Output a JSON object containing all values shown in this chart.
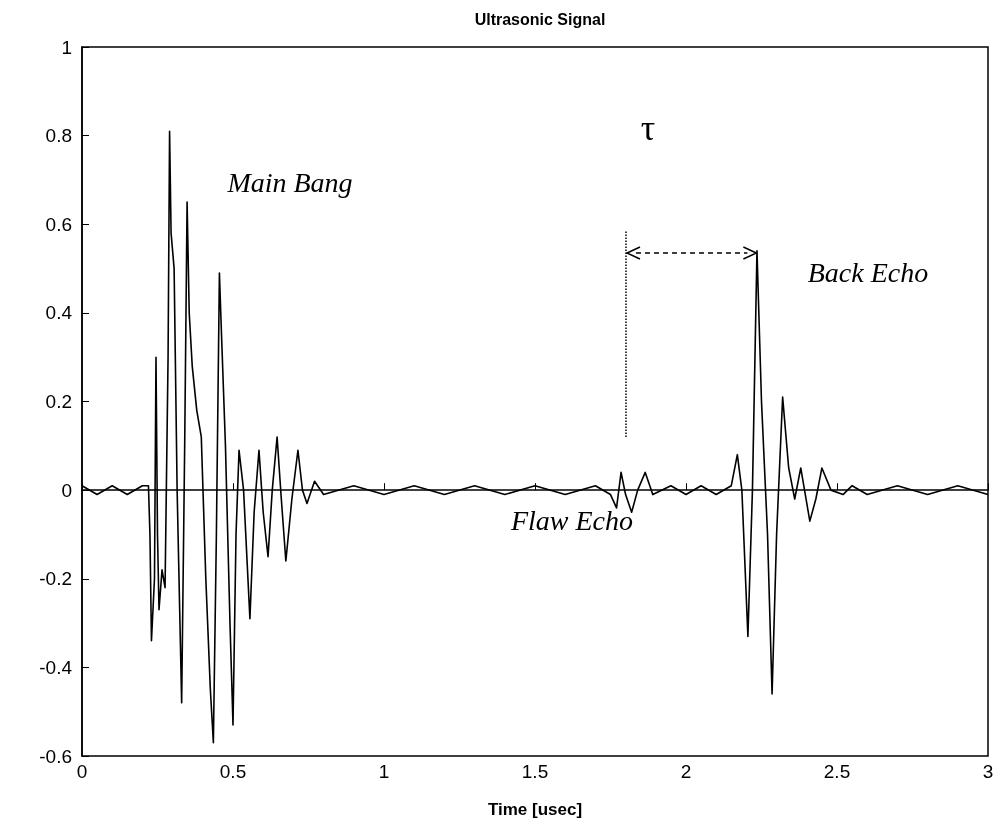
{
  "chart_data": {
    "type": "line",
    "title": "Ultrasonic Signal",
    "xlabel": "Time [usec]",
    "xlim": [
      0,
      3
    ],
    "xticks": [
      0,
      0.5,
      1,
      1.5,
      2,
      2.5,
      3
    ],
    "ylim": [
      -0.6,
      1
    ],
    "yticks": [
      -0.6,
      -0.4,
      -0.2,
      0,
      0.2,
      0.4,
      0.6,
      0.8,
      1
    ],
    "marker": "none",
    "line_style": "solid",
    "x": [
      0,
      0.05,
      0.1,
      0.15,
      0.2,
      0.22,
      0.225,
      0.23,
      0.24,
      0.245,
      0.25,
      0.255,
      0.265,
      0.275,
      0.285,
      0.29,
      0.295,
      0.305,
      0.315,
      0.33,
      0.34,
      0.348,
      0.355,
      0.365,
      0.38,
      0.395,
      0.41,
      0.425,
      0.435,
      0.445,
      0.455,
      0.462,
      0.475,
      0.49,
      0.5,
      0.51,
      0.52,
      0.535,
      0.556,
      0.57,
      0.586,
      0.6,
      0.616,
      0.63,
      0.646,
      0.66,
      0.675,
      0.695,
      0.715,
      0.73,
      0.745,
      0.77,
      0.8,
      0.9,
      1,
      1.1,
      1.2,
      1.3,
      1.4,
      1.5,
      1.6,
      1.7,
      1.75,
      1.77,
      1.785,
      1.8,
      1.82,
      1.84,
      1.865,
      1.89,
      1.95,
      2,
      2.05,
      2.1,
      2.15,
      2.17,
      2.185,
      2.205,
      2.22,
      2.235,
      2.25,
      2.27,
      2.285,
      2.3,
      2.32,
      2.34,
      2.36,
      2.38,
      2.41,
      2.43,
      2.45,
      2.48,
      2.52,
      2.55,
      2.6,
      2.7,
      2.8,
      2.9,
      3
    ],
    "values": [
      0.01,
      -0.01,
      0.01,
      -0.01,
      0.01,
      0.01,
      -0.1,
      -0.34,
      -0.2,
      0.3,
      -0.1,
      -0.27,
      -0.18,
      -0.22,
      0.3,
      0.81,
      0.58,
      0.5,
      0.0,
      -0.48,
      0.1,
      0.65,
      0.4,
      0.28,
      0.18,
      0.12,
      -0.2,
      -0.45,
      -0.57,
      -0.1,
      0.49,
      0.35,
      0.1,
      -0.3,
      -0.53,
      -0.1,
      0.09,
      0.0,
      -0.29,
      -0.05,
      0.09,
      -0.05,
      -0.15,
      0.0,
      0.12,
      -0.02,
      -0.16,
      -0.02,
      0.09,
      0.0,
      -0.03,
      0.02,
      -0.01,
      0.01,
      -0.01,
      0.01,
      -0.01,
      0.01,
      -0.01,
      0.01,
      -0.01,
      0.01,
      -0.01,
      -0.04,
      0.04,
      -0.01,
      -0.05,
      0.0,
      0.04,
      -0.01,
      0.01,
      -0.01,
      0.01,
      -0.01,
      0.01,
      0.08,
      0.0,
      -0.33,
      0.0,
      0.54,
      0.2,
      -0.1,
      -0.46,
      -0.1,
      0.21,
      0.05,
      -0.02,
      0.05,
      -0.07,
      -0.02,
      0.05,
      0.0,
      -0.01,
      0.01,
      -0.01,
      0.01,
      -0.01,
      0.01,
      -0.01
    ],
    "color": "#000000",
    "ref_lines": [
      {
        "axis": "x",
        "value": 1.8,
        "line_style": "dotted",
        "color": "#000000"
      }
    ],
    "annotations": [
      "Main Bang",
      "τ",
      "Back Echo",
      "Flaw Echo"
    ]
  }
}
